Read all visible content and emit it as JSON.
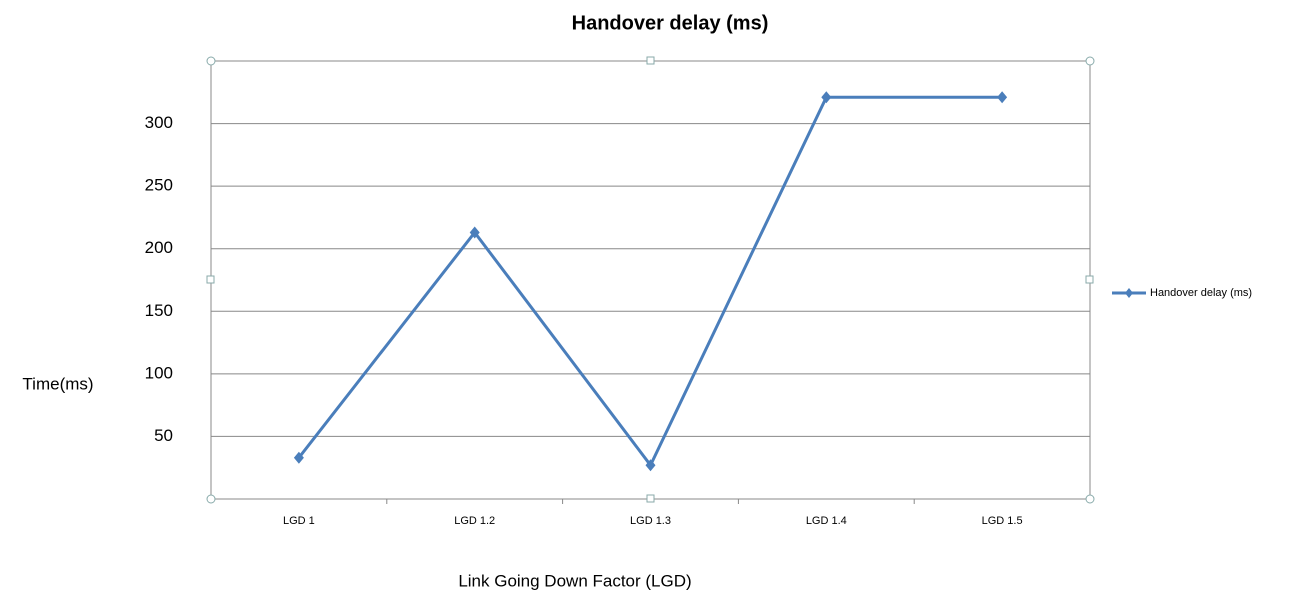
{
  "chart_data": {
    "type": "line",
    "title": "Handover delay (ms)",
    "x_label": "Link Going Down Factor (LGD)",
    "y_label": "Time(ms)",
    "categories": [
      "LGD 1",
      "LGD 1.2",
      "LGD 1.3",
      "LGD 1.4",
      "LGD 1.5"
    ],
    "series": [
      {
        "name": "Handover delay (ms)",
        "color": "#4a7ebb",
        "values": [
          33,
          213,
          27,
          321,
          321
        ]
      }
    ],
    "ylim": [
      0,
      350
    ],
    "yticks": [
      50,
      100,
      150,
      200,
      250,
      300
    ],
    "grid": true,
    "legend": "right"
  }
}
